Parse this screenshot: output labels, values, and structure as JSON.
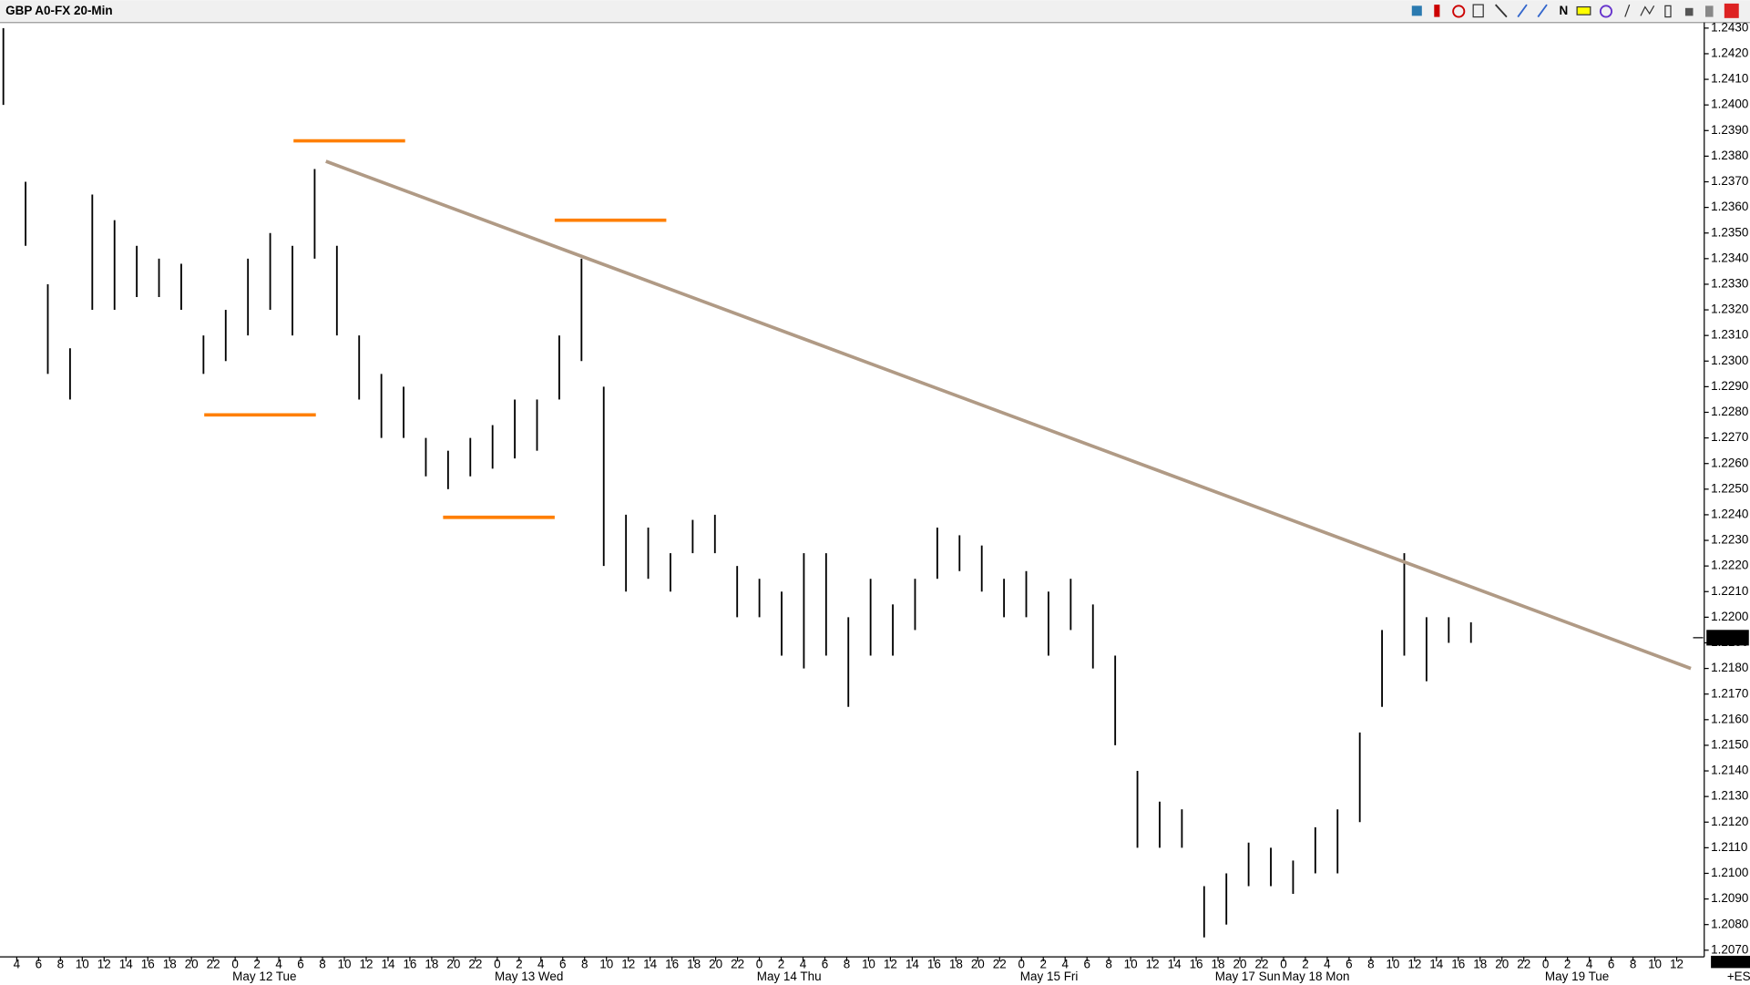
{
  "chart_data": {
    "type": "ohlc",
    "title": "GBP A0-FX 20-Min",
    "high": [
      1.243,
      1.237,
      1.233,
      1.2305,
      1.2365,
      1.2355,
      1.2345,
      1.234,
      1.2338,
      1.231,
      1.232,
      1.234,
      1.235,
      1.2345,
      1.2375,
      1.2345,
      1.231,
      1.2295,
      1.229,
      1.227,
      1.2265,
      1.227,
      1.2275,
      1.2285,
      1.2285,
      1.231,
      1.234,
      1.229,
      1.224,
      1.2235,
      1.2225,
      1.2238,
      1.224,
      1.222,
      1.2215,
      1.221,
      1.2225,
      1.2225,
      1.22,
      1.2215,
      1.2205,
      1.2215,
      1.2235,
      1.2232,
      1.2228,
      1.2215,
      1.2218,
      1.221,
      1.2215,
      1.2205,
      1.2185,
      1.214,
      1.2128,
      1.2125,
      1.2095,
      1.21,
      1.2112,
      1.211,
      1.2105,
      1.2118,
      1.2125,
      1.2155,
      1.2195,
      1.2225,
      1.22,
      1.22,
      1.2198
    ],
    "low": [
      1.24,
      1.2345,
      1.2295,
      1.2285,
      1.232,
      1.232,
      1.2325,
      1.2325,
      1.232,
      1.2295,
      1.23,
      1.231,
      1.232,
      1.231,
      1.234,
      1.231,
      1.2285,
      1.227,
      1.227,
      1.2255,
      1.225,
      1.2255,
      1.2258,
      1.2262,
      1.2265,
      1.2285,
      1.23,
      1.222,
      1.221,
      1.2215,
      1.221,
      1.2225,
      1.2225,
      1.22,
      1.22,
      1.2185,
      1.218,
      1.2185,
      1.2165,
      1.2185,
      1.2185,
      1.2195,
      1.2215,
      1.2218,
      1.221,
      1.22,
      1.22,
      1.2185,
      1.2195,
      1.218,
      1.215,
      1.211,
      1.211,
      1.211,
      1.2075,
      1.208,
      1.2095,
      1.2095,
      1.2092,
      1.21,
      1.21,
      1.212,
      1.2165,
      1.2185,
      1.2175,
      1.219,
      1.219
    ],
    "color": "#000000",
    "trendline": {
      "values": [
        1.2378,
        1.218
      ],
      "color": "#b09a85"
    },
    "levels": {
      "values": [
        1.2386,
        1.2279,
        1.2355,
        1.2239
      ],
      "color": "#ff7f00"
    },
    "last_price": 1.2192,
    "ylim": [
      1.207,
      1.243
    ],
    "yticks": [
      {
        "value": 1.207,
        "label": "1.2070"
      },
      {
        "value": 1.208,
        "label": "1.2080"
      },
      {
        "value": 1.209,
        "label": "1.2090"
      },
      {
        "value": 1.21,
        "label": "1.2100"
      },
      {
        "value": 1.211,
        "label": "1.2110"
      },
      {
        "value": 1.212,
        "label": "1.2120"
      },
      {
        "value": 1.213,
        "label": "1.2130"
      },
      {
        "value": 1.214,
        "label": "1.2140"
      },
      {
        "value": 1.215,
        "label": "1.2150"
      },
      {
        "value": 1.216,
        "label": "1.2160"
      },
      {
        "value": 1.217,
        "label": "1.2170"
      },
      {
        "value": 1.218,
        "label": "1.2180"
      },
      {
        "value": 1.219,
        "label": "1.2190"
      },
      {
        "value": 1.22,
        "label": "1.2200"
      },
      {
        "value": 1.221,
        "label": "1.2210"
      },
      {
        "value": 1.222,
        "label": "1.2220"
      },
      {
        "value": 1.223,
        "label": "1.2230"
      },
      {
        "value": 1.224,
        "label": "1.2240"
      },
      {
        "value": 1.225,
        "label": "1.2250"
      },
      {
        "value": 1.226,
        "label": "1.2260"
      },
      {
        "value": 1.227,
        "label": "1.2270"
      },
      {
        "value": 1.228,
        "label": "1.2280"
      },
      {
        "value": 1.229,
        "label": "1.2290"
      },
      {
        "value": 1.23,
        "label": "1.2300"
      },
      {
        "value": 1.231,
        "label": "1.2310"
      },
      {
        "value": 1.232,
        "label": "1.2320"
      },
      {
        "value": 1.233,
        "label": "1.2330"
      },
      {
        "value": 1.234,
        "label": "1.2340"
      },
      {
        "value": 1.235,
        "label": "1.2350"
      },
      {
        "value": 1.236,
        "label": "1.2360"
      },
      {
        "value": 1.237,
        "label": "1.2370"
      },
      {
        "value": 1.238,
        "label": "1.2380"
      },
      {
        "value": 1.239,
        "label": "1.2390"
      },
      {
        "value": 1.24,
        "label": "1.2400"
      },
      {
        "value": 1.241,
        "label": "1.2410"
      },
      {
        "value": 1.242,
        "label": "1.2420"
      },
      {
        "value": 1.243,
        "label": "1.2430"
      }
    ],
    "hour_labels": [
      "4",
      "6",
      "8",
      "10",
      "12",
      "14",
      "16",
      "18",
      "20",
      "22",
      "0",
      "2",
      "4",
      "6",
      "8",
      "10",
      "12",
      "14",
      "16",
      "18",
      "20",
      "22",
      "0",
      "2",
      "4",
      "6",
      "8",
      "10",
      "12",
      "14",
      "16",
      "18",
      "20",
      "22",
      "0",
      "2",
      "4",
      "6",
      "8",
      "10",
      "12",
      "14",
      "16",
      "18",
      "20",
      "22",
      "0",
      "2",
      "4",
      "6",
      "8",
      "10",
      "12",
      "14",
      "16",
      "18",
      "20",
      "22",
      "0",
      "2",
      "4",
      "6",
      "8",
      "10",
      "12",
      "14",
      "16",
      "18",
      "20",
      "22",
      "0",
      "2",
      "4",
      "6",
      "8",
      "10",
      "12"
    ],
    "day_labels": [
      "May 12 Tue",
      "May 13 Wed",
      "May 14 Thu",
      "May 15 Fri",
      "May 17 Sun",
      "May 18 Mon",
      "May 19 Tue"
    ],
    "corner_label": "+ES"
  }
}
